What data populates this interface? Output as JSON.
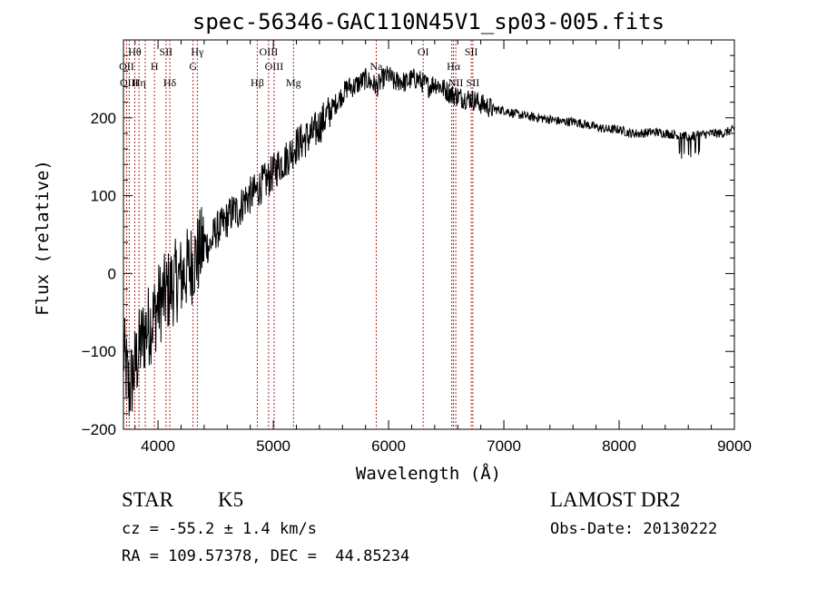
{
  "chart_data": {
    "type": "line",
    "title": "spec-56346-GAC110N45V1_sp03-005.fits",
    "xlabel": "Wavelength (Å)",
    "ylabel": "Flux (relative)",
    "xlim": [
      3700,
      9000
    ],
    "ylim": [
      -200,
      300
    ],
    "xticks": [
      4000,
      5000,
      6000,
      7000,
      8000,
      9000
    ],
    "yticks": [
      -200,
      -100,
      0,
      100,
      200
    ],
    "grid": false,
    "series": [
      {
        "x": [
          3700,
          3750,
          3800,
          3850,
          3900,
          3950,
          4000,
          4050,
          4100,
          4150,
          4200,
          4250,
          4300,
          4350,
          4400,
          4450,
          4500,
          4550,
          4600,
          4650,
          4700,
          4750,
          4800,
          4850,
          4900,
          4950,
          5000,
          5050,
          5100,
          5150,
          5200,
          5250,
          5300,
          5350,
          5400,
          5450,
          5500,
          5550,
          5600,
          5650,
          5700,
          5750,
          5800,
          5850,
          5900,
          5950,
          6000,
          6050,
          6100,
          6150,
          6200,
          6250,
          6300,
          6350,
          6400,
          6450,
          6500,
          6550,
          6600,
          6650,
          6700,
          6750,
          6800,
          6850,
          6900,
          6950,
          7000,
          7100,
          7200,
          7300,
          7400,
          7500,
          7600,
          7700,
          7800,
          7900,
          8000,
          8100,
          8200,
          8300,
          8400,
          8500,
          8600,
          8700,
          8800,
          8900,
          9000
        ],
        "y": [
          -100,
          -150,
          -120,
          -90,
          -70,
          -60,
          -40,
          -30,
          -20,
          -10,
          -5,
          5,
          15,
          25,
          40,
          35,
          55,
          60,
          70,
          80,
          80,
          95,
          100,
          105,
          115,
          120,
          130,
          140,
          145,
          155,
          165,
          170,
          175,
          180,
          190,
          200,
          210,
          220,
          230,
          240,
          240,
          245,
          250,
          245,
          240,
          250,
          255,
          245,
          248,
          245,
          250,
          250,
          245,
          240,
          245,
          240,
          235,
          230,
          228,
          225,
          225,
          222,
          218,
          215,
          212,
          210,
          210,
          205,
          202,
          200,
          198,
          195,
          195,
          192,
          188,
          185,
          185,
          180,
          180,
          182,
          180,
          178,
          175,
          178,
          180,
          180,
          185
        ]
      }
    ],
    "line_color": "#000000",
    "line_marker_color": "#b22222",
    "lines_upper": [
      {
        "label": "Hθ",
        "x": 3798
      },
      {
        "label": "SII",
        "x": 4069
      },
      {
        "label": "Hγ",
        "x": 4341
      },
      {
        "label": "OIII",
        "x": 4959
      },
      {
        "label": "OI",
        "x": 6300
      },
      {
        "label": "SII",
        "x": 6717
      }
    ],
    "lines_middle": [
      {
        "label": "OII",
        "x": 3727
      },
      {
        "label": "H",
        "x": 3969
      },
      {
        "label": "G",
        "x": 4304
      },
      {
        "label": "OIII",
        "x": 5007
      },
      {
        "label": "Na",
        "x": 5893
      },
      {
        "label": "Hα",
        "x": 6563
      }
    ],
    "lines_lower": [
      {
        "label": "OIII",
        "x": 3750
      },
      {
        "label": "Hη",
        "x": 3835
      },
      {
        "label": "Hδ",
        "x": 4102
      },
      {
        "label": "Hβ",
        "x": 4861
      },
      {
        "label": "Mg",
        "x": 5175
      },
      {
        "label": "NII",
        "x": 6583
      },
      {
        "label": "SII",
        "x": 6731
      }
    ],
    "extra_marker_lines": [
      3835,
      3889,
      3969,
      4102,
      4304,
      4861,
      5007,
      5175,
      5893,
      6300,
      6548,
      6583,
      6717,
      6731
    ]
  },
  "footer": {
    "object_class": "STAR",
    "subclass": "K5",
    "redshift": "cz = -55.2 ± 1.4 km/s",
    "coords": "RA = 109.57378, DEC =  44.85234",
    "survey": "LAMOST DR2",
    "obs_date": "Obs-Date: 20130222"
  }
}
